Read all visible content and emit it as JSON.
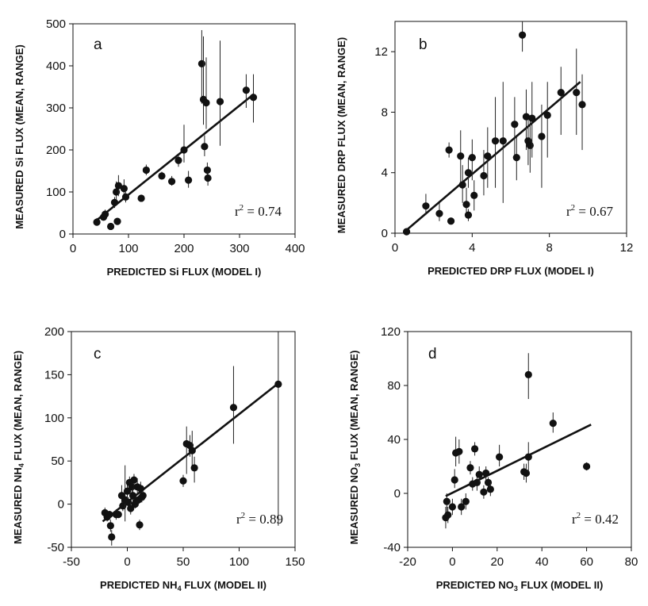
{
  "chart_data": [
    {
      "type": "scatter",
      "panel_label": "a",
      "xlabel": "PREDICTED Si FLUX (MODEL I)",
      "ylabel": "MEASURED Si FLUX (MEAN, RANGE)",
      "xlim": [
        0,
        400
      ],
      "ylim": [
        0,
        500
      ],
      "xticks": [
        0,
        100,
        200,
        300,
        400
      ],
      "yticks": [
        0,
        100,
        200,
        300,
        400,
        500
      ],
      "r2": {
        "base": "r",
        "exp": "2",
        "value": " = 0.74"
      },
      "fit": {
        "x": [
          40,
          325
        ],
        "y": [
          30,
          332
        ]
      },
      "points": [
        {
          "x": 43,
          "y": 28,
          "lo": 20,
          "hi": 38
        },
        {
          "x": 55,
          "y": 40,
          "lo": 32,
          "hi": 52
        },
        {
          "x": 58,
          "y": 47,
          "lo": 38,
          "hi": 58
        },
        {
          "x": 68,
          "y": 18,
          "lo": 14,
          "hi": 24
        },
        {
          "x": 75,
          "y": 75,
          "lo": 62,
          "hi": 88
        },
        {
          "x": 78,
          "y": 100,
          "lo": 80,
          "hi": 125
        },
        {
          "x": 80,
          "y": 30,
          "lo": 25,
          "hi": 36
        },
        {
          "x": 82,
          "y": 115,
          "lo": 90,
          "hi": 140
        },
        {
          "x": 92,
          "y": 108,
          "lo": 85,
          "hi": 130
        },
        {
          "x": 95,
          "y": 88,
          "lo": 75,
          "hi": 100
        },
        {
          "x": 123,
          "y": 85,
          "lo": 80,
          "hi": 92
        },
        {
          "x": 132,
          "y": 152,
          "lo": 140,
          "hi": 165
        },
        {
          "x": 160,
          "y": 138,
          "lo": 130,
          "hi": 148
        },
        {
          "x": 178,
          "y": 125,
          "lo": 115,
          "hi": 138
        },
        {
          "x": 190,
          "y": 175,
          "lo": 160,
          "hi": 190
        },
        {
          "x": 200,
          "y": 200,
          "lo": 170,
          "hi": 260
        },
        {
          "x": 208,
          "y": 128,
          "lo": 110,
          "hi": 150
        },
        {
          "x": 232,
          "y": 405,
          "lo": 310,
          "hi": 485
        },
        {
          "x": 235,
          "y": 320,
          "lo": 260,
          "hi": 470
        },
        {
          "x": 237,
          "y": 208,
          "lo": 185,
          "hi": 235
        },
        {
          "x": 240,
          "y": 312,
          "lo": 250,
          "hi": 420
        },
        {
          "x": 242,
          "y": 152,
          "lo": 135,
          "hi": 170
        },
        {
          "x": 243,
          "y": 133,
          "lo": 115,
          "hi": 150
        },
        {
          "x": 265,
          "y": 315,
          "lo": 210,
          "hi": 460
        },
        {
          "x": 312,
          "y": 342,
          "lo": 300,
          "hi": 380
        },
        {
          "x": 325,
          "y": 325,
          "lo": 265,
          "hi": 380
        }
      ]
    },
    {
      "type": "scatter",
      "panel_label": "b",
      "xlabel": "PREDICTED DRP FLUX (MODEL I)",
      "ylabel": "MEASURED DRP FLUX (MEAN, RANGE)",
      "xlim": [
        0,
        12
      ],
      "ylim": [
        0,
        14
      ],
      "xticks": [
        0,
        4,
        8,
        12
      ],
      "yticks": [
        0,
        4,
        8,
        12
      ],
      "r2": {
        "base": "r",
        "exp": "2",
        "value": " = 0.67"
      },
      "fit": {
        "x": [
          0.5,
          9.6
        ],
        "y": [
          0.1,
          10
        ]
      },
      "points": [
        {
          "x": 0.6,
          "y": 0.1,
          "lo": 0,
          "hi": 0.3
        },
        {
          "x": 1.6,
          "y": 1.8,
          "lo": 1.2,
          "hi": 2.6
        },
        {
          "x": 2.3,
          "y": 1.3,
          "lo": 0.8,
          "hi": 2
        },
        {
          "x": 2.8,
          "y": 5.5,
          "lo": 5,
          "hi": 6
        },
        {
          "x": 2.9,
          "y": 0.8,
          "lo": 0.6,
          "hi": 1
        },
        {
          "x": 3.4,
          "y": 5.1,
          "lo": 3,
          "hi": 6.8
        },
        {
          "x": 3.5,
          "y": 3.2,
          "lo": 2,
          "hi": 4.5
        },
        {
          "x": 3.7,
          "y": 1.9,
          "lo": 1,
          "hi": 3
        },
        {
          "x": 3.8,
          "y": 4,
          "lo": 3,
          "hi": 5
        },
        {
          "x": 3.8,
          "y": 1.2,
          "lo": 0.8,
          "hi": 1.6
        },
        {
          "x": 4,
          "y": 5,
          "lo": 3.5,
          "hi": 6.2
        },
        {
          "x": 4.1,
          "y": 2.5,
          "lo": 1.5,
          "hi": 3.5
        },
        {
          "x": 4.6,
          "y": 3.8,
          "lo": 2.5,
          "hi": 5.5
        },
        {
          "x": 4.8,
          "y": 5.1,
          "lo": 3,
          "hi": 7
        },
        {
          "x": 5.2,
          "y": 6.1,
          "lo": 3,
          "hi": 9
        },
        {
          "x": 5.6,
          "y": 6.1,
          "lo": 2,
          "hi": 10
        },
        {
          "x": 6.2,
          "y": 7.2,
          "lo": 5,
          "hi": 9
        },
        {
          "x": 6.3,
          "y": 5,
          "lo": 3.5,
          "hi": 6.5
        },
        {
          "x": 6.6,
          "y": 13.1,
          "lo": 12,
          "hi": 14
        },
        {
          "x": 6.8,
          "y": 7.7,
          "lo": 5.5,
          "hi": 9.5
        },
        {
          "x": 6.9,
          "y": 6.1,
          "lo": 4.5,
          "hi": 7.5
        },
        {
          "x": 7,
          "y": 5.8,
          "lo": 4,
          "hi": 7.5
        },
        {
          "x": 7.1,
          "y": 7.6,
          "lo": 5,
          "hi": 10
        },
        {
          "x": 7.6,
          "y": 6.4,
          "lo": 3,
          "hi": 8.5
        },
        {
          "x": 7.9,
          "y": 7.8,
          "lo": 5,
          "hi": 10
        },
        {
          "x": 8.6,
          "y": 9.3,
          "lo": 6.5,
          "hi": 11
        },
        {
          "x": 9.4,
          "y": 9.3,
          "lo": 6.5,
          "hi": 12.2
        },
        {
          "x": 9.7,
          "y": 8.5,
          "lo": 5.5,
          "hi": 10.5
        }
      ]
    },
    {
      "type": "scatter",
      "panel_label": "c",
      "xlabel": {
        "parts": [
          "PREDICTED NH",
          "4",
          " FLUX (MODEL II)"
        ]
      },
      "ylabel": {
        "parts": [
          "MEASURED NH",
          "4",
          " FLUX (MEAN, RANGE)"
        ]
      },
      "xlim": [
        -50,
        150
      ],
      "ylim": [
        -50,
        200
      ],
      "xticks": [
        -50,
        0,
        50,
        100,
        150
      ],
      "yticks": [
        -50,
        0,
        50,
        100,
        150,
        200
      ],
      "r2": {
        "base": "r",
        "exp": "2",
        "value": " = 0.89"
      },
      "fit": {
        "x": [
          -22,
          135
        ],
        "y": [
          -20,
          140
        ]
      },
      "points": [
        {
          "x": -20,
          "y": -10,
          "lo": -18,
          "hi": -4
        },
        {
          "x": -18,
          "y": -15,
          "lo": -20,
          "hi": -10
        },
        {
          "x": -16,
          "y": -12,
          "lo": -16,
          "hi": -8
        },
        {
          "x": -15,
          "y": -25,
          "lo": -32,
          "hi": -18
        },
        {
          "x": -14,
          "y": -38,
          "lo": -48,
          "hi": -30
        },
        {
          "x": -10,
          "y": -12,
          "lo": -18,
          "hi": -6
        },
        {
          "x": -8,
          "y": -12,
          "lo": -16,
          "hi": -8
        },
        {
          "x": -5,
          "y": 10,
          "lo": 0,
          "hi": 22
        },
        {
          "x": -4,
          "y": -2,
          "lo": -8,
          "hi": 5
        },
        {
          "x": -2,
          "y": 5,
          "lo": -20,
          "hi": 45
        },
        {
          "x": 0,
          "y": 15,
          "lo": 5,
          "hi": 28
        },
        {
          "x": 1,
          "y": 2,
          "lo": -5,
          "hi": 8
        },
        {
          "x": 2,
          "y": 25,
          "lo": 18,
          "hi": 32
        },
        {
          "x": 3,
          "y": -5,
          "lo": -12,
          "hi": 2
        },
        {
          "x": 4,
          "y": 20,
          "lo": 12,
          "hi": 30
        },
        {
          "x": 5,
          "y": 10,
          "lo": 2,
          "hi": 18
        },
        {
          "x": 6,
          "y": 28,
          "lo": 18,
          "hi": 35
        },
        {
          "x": 7,
          "y": 0,
          "lo": -5,
          "hi": 5
        },
        {
          "x": 8,
          "y": 3,
          "lo": -2,
          "hi": 8
        },
        {
          "x": 9,
          "y": 20,
          "lo": 12,
          "hi": 30
        },
        {
          "x": 10,
          "y": 5,
          "lo": 0,
          "hi": 10
        },
        {
          "x": 11,
          "y": -24,
          "lo": -30,
          "hi": -18
        },
        {
          "x": 12,
          "y": 18,
          "lo": 12,
          "hi": 26
        },
        {
          "x": 13,
          "y": 8,
          "lo": 2,
          "hi": 14
        },
        {
          "x": 14,
          "y": 10,
          "lo": 4,
          "hi": 16
        },
        {
          "x": 50,
          "y": 27,
          "lo": 20,
          "hi": 34
        },
        {
          "x": 53,
          "y": 70,
          "lo": 35,
          "hi": 90
        },
        {
          "x": 56,
          "y": 68,
          "lo": 55,
          "hi": 80
        },
        {
          "x": 58,
          "y": 62,
          "lo": 40,
          "hi": 85
        },
        {
          "x": 60,
          "y": 42,
          "lo": 25,
          "hi": 55
        },
        {
          "x": 95,
          "y": 112,
          "lo": 70,
          "hi": 160
        },
        {
          "x": 135,
          "y": 139,
          "lo": -25,
          "hi": 200
        }
      ]
    },
    {
      "type": "scatter",
      "panel_label": "d",
      "xlabel": {
        "parts": [
          "PREDICTED NO",
          "3",
          " FLUX (MODEL II)"
        ]
      },
      "ylabel": {
        "parts": [
          "MEASURED NO",
          "3",
          " FLUX (MEAN, RANGE)"
        ]
      },
      "xlim": [
        -20,
        80
      ],
      "ylim": [
        -40,
        120
      ],
      "xticks": [
        -20,
        0,
        20,
        40,
        60,
        80
      ],
      "yticks": [
        -40,
        0,
        40,
        80,
        120
      ],
      "r2": {
        "base": "r",
        "exp": "2",
        "value": " = 0.42"
      },
      "fit": {
        "x": [
          -3,
          62
        ],
        "y": [
          -2,
          51
        ]
      },
      "points": [
        {
          "x": -3,
          "y": -18,
          "lo": -26,
          "hi": -10
        },
        {
          "x": -2.5,
          "y": -6,
          "lo": -14,
          "hi": 0
        },
        {
          "x": -2,
          "y": -16,
          "lo": -22,
          "hi": -10
        },
        {
          "x": 0,
          "y": -10,
          "lo": -16,
          "hi": -4
        },
        {
          "x": 1,
          "y": 10,
          "lo": 4,
          "hi": 18
        },
        {
          "x": 1.5,
          "y": 30,
          "lo": 20,
          "hi": 42
        },
        {
          "x": 3,
          "y": 31,
          "lo": 22,
          "hi": 40
        },
        {
          "x": 4,
          "y": -10,
          "lo": -16,
          "hi": -4
        },
        {
          "x": 6,
          "y": -6,
          "lo": -12,
          "hi": 0
        },
        {
          "x": 8,
          "y": 19,
          "lo": 14,
          "hi": 24
        },
        {
          "x": 9,
          "y": 7,
          "lo": 2,
          "hi": 12
        },
        {
          "x": 10,
          "y": 33,
          "lo": 28,
          "hi": 38
        },
        {
          "x": 11,
          "y": 8,
          "lo": 2,
          "hi": 14
        },
        {
          "x": 12,
          "y": 14,
          "lo": 8,
          "hi": 20
        },
        {
          "x": 14,
          "y": 1,
          "lo": -4,
          "hi": 6
        },
        {
          "x": 15,
          "y": 15,
          "lo": 10,
          "hi": 20
        },
        {
          "x": 16,
          "y": 8,
          "lo": 3,
          "hi": 12
        },
        {
          "x": 17,
          "y": 3,
          "lo": -2,
          "hi": 8
        },
        {
          "x": 21,
          "y": 27,
          "lo": 20,
          "hi": 36
        },
        {
          "x": 32,
          "y": 16,
          "lo": 10,
          "hi": 22
        },
        {
          "x": 33,
          "y": 15,
          "lo": 8,
          "hi": 22
        },
        {
          "x": 34,
          "y": 88,
          "lo": 70,
          "hi": 104
        },
        {
          "x": 34,
          "y": 27,
          "lo": 16,
          "hi": 38
        },
        {
          "x": 45,
          "y": 52,
          "lo": 45,
          "hi": 60
        },
        {
          "x": 60,
          "y": 20,
          "lo": 17,
          "hi": 23
        }
      ]
    }
  ]
}
